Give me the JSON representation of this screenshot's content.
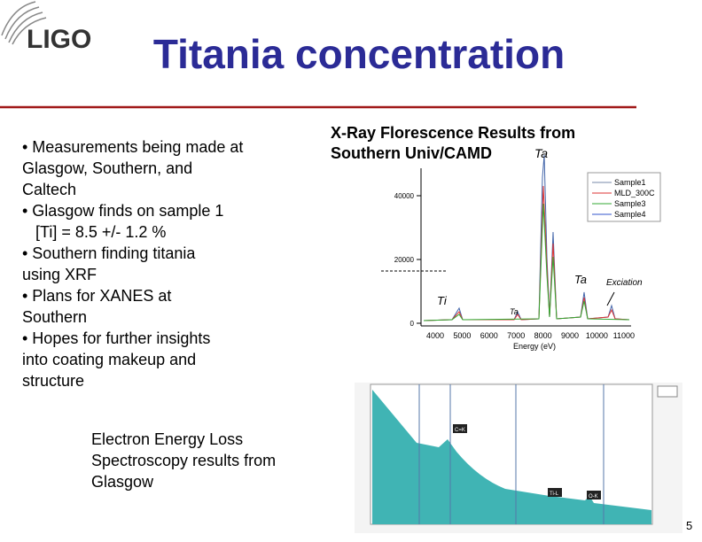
{
  "header": {
    "logo": "LIGO",
    "title": "Titania concentration"
  },
  "bullets": [
    [
      "• Measurements being made at",
      "Glasgow, Southern, and",
      "Caltech"
    ],
    [
      "• Glasgow finds on sample 1",
      "   [Ti] = 8.5 +/- 1.2 %"
    ],
    [
      "• Southern finding titania",
      "using XRF"
    ],
    [
      "• Plans for XANES at",
      "Southern"
    ],
    [
      "• Hopes for further insights",
      "into coating makeup and",
      "structure"
    ]
  ],
  "xrf": {
    "title": [
      "X-Ray Florescence Results from",
      "Southern Univ/CAMD"
    ],
    "yticks": [
      "0",
      "20000",
      "40000"
    ],
    "xticks": [
      "4000",
      "5000",
      "6000",
      "7000",
      "8000",
      "9000",
      "10000",
      "11000"
    ],
    "xlabel": "Energy (eV)",
    "legend": [
      "Sample1",
      "MLD_300C",
      "Sample3",
      "Sample4"
    ],
    "annotations": [
      "Ti",
      "Ta",
      "Ta",
      "Ta",
      "Exciation"
    ]
  },
  "eels": {
    "caption": [
      "Electron Energy Loss",
      "Spectroscopy results from",
      "Glasgow"
    ],
    "labels": [
      "C=K",
      "Ti-L",
      "O-K"
    ]
  },
  "page_number": "5"
}
